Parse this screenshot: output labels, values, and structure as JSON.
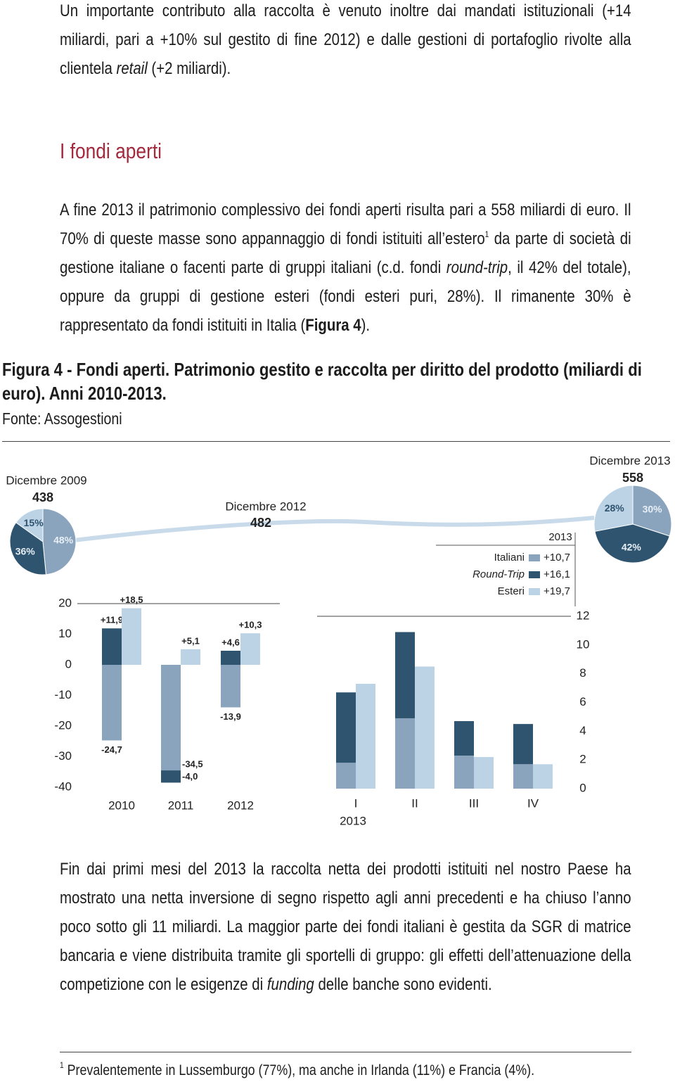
{
  "intro": {
    "runs": [
      {
        "text": "Un importante contributo alla raccolta è venuto inoltre dai mandati istituzionali (+14 miliardi, pari a +10% sul gestito di fine 2012) e dalle gestioni di portafoglio rivolte alla clientela "
      },
      {
        "text": "retail",
        "style": "italic"
      },
      {
        "text": " (+2 miliardi)."
      }
    ]
  },
  "section_title": "I fondi aperti",
  "paragraph_1": {
    "runs": [
      {
        "text": "A fine 2013 il patrimonio complessivo dei fondi aperti risulta pari a 558 miliardi di euro. Il 70% di queste masse sono appannaggio di fondi istituiti all’estero"
      },
      {
        "text": "1",
        "style": "superscript"
      },
      {
        "text": " da parte di società di gestione italiane o facenti parte di gruppi italiani (c.d. fondi "
      },
      {
        "text": "round-trip",
        "style": "italic"
      },
      {
        "text": ", il 42% del totale), oppure da gruppi di gestione esteri (fondi esteri puri, 28%). Il rimanente 30% è rappresentato da fondi istituiti in Italia ("
      },
      {
        "text": "Figura 4",
        "style": "bold"
      },
      {
        "text": ")."
      }
    ]
  },
  "figure": {
    "caption": "Figura 4 - Fondi aperti. Patrimonio gestito e raccolta per diritto del prodotto (miliardi di euro). Anni 2010-2013.",
    "source": "Fonte: Assogestioni"
  },
  "chart_data": [
    {
      "type": "pie",
      "title": "Dicembre 2009",
      "total": 438,
      "values": [
        48,
        36,
        15
      ],
      "value_labels": [
        "48%",
        "36%",
        "15%"
      ],
      "colors": [
        "#8aa4be",
        "#2e5470",
        "#bcd3e6"
      ]
    },
    {
      "type": "bar",
      "stacked": true,
      "annotation": {
        "title": "Dicembre 2012",
        "total": 482
      },
      "categories": [
        "2010",
        "2011",
        "2012"
      ],
      "ylim": [
        -40,
        20
      ],
      "yticks": [
        20,
        10,
        0,
        -10,
        -20,
        -30,
        -40
      ],
      "series": [
        {
          "color": "#8aa4be",
          "stack": 0,
          "values": [
            -24.7,
            -34.5,
            -13.9
          ],
          "value_labels": [
            "-24,7",
            "-34,5",
            "-13,9"
          ]
        },
        {
          "color": "#2e5470",
          "stack": 0,
          "values": [
            11.9,
            -4.0,
            4.6
          ],
          "value_labels": [
            "+11,9",
            "-4,0",
            "+4,6"
          ]
        },
        {
          "color": "#bcd3e6",
          "stack": 1,
          "values": [
            18.5,
            5.1,
            10.3
          ],
          "value_labels": [
            "+18,5",
            "+5,1",
            "+10,3"
          ]
        }
      ]
    },
    {
      "type": "bar",
      "stacked": true,
      "year": "2013",
      "categories": [
        "I",
        "II",
        "III",
        "IV"
      ],
      "ylim": [
        0,
        12
      ],
      "yticks": [
        0,
        2,
        4,
        6,
        8,
        10,
        12
      ],
      "legend": {
        "title": "2013",
        "totals": [
          {
            "value": 10.7,
            "label": "+10,7"
          },
          {
            "value": 16.1,
            "label": "+16,1"
          },
          {
            "value": 19.7,
            "label": "+19,7"
          }
        ]
      },
      "series": [
        {
          "name": "Italiani",
          "color": "#8aa4be",
          "stack": 0,
          "values": [
            1.8,
            4.9,
            2.3,
            1.7
          ]
        },
        {
          "name": "Round-Trip",
          "name_style": "italic",
          "color": "#2e5470",
          "stack": 0,
          "values": [
            4.9,
            6.0,
            2.4,
            2.8
          ]
        },
        {
          "name": "Esteri",
          "color": "#bcd3e6",
          "stack": 1,
          "values": [
            7.3,
            8.5,
            2.2,
            1.7
          ]
        }
      ]
    },
    {
      "type": "pie",
      "title": "Dicembre 2013",
      "total": 558,
      "values": [
        30,
        42,
        28
      ],
      "value_labels": [
        "30%",
        "42%",
        "28%"
      ],
      "colors": [
        "#8aa4be",
        "#2e5470",
        "#bcd3e6"
      ]
    }
  ],
  "paragraph_2": {
    "runs": [
      {
        "text": "Fin dai primi mesi del 2013 la raccolta netta dei prodotti istituiti nel nostro Paese ha mostrato una netta inversione di segno rispetto agli anni precedenti e ha chiuso l’anno poco sotto gli 11 miliardi. La maggior parte dei fondi italiani è gestita da SGR di matrice bancaria e viene distribuita tramite gli sportelli di gruppo: gli effetti dell’attenuazione della competizione con le esigenze di "
      },
      {
        "text": "funding",
        "style": "italic"
      },
      {
        "text": " delle banche sono evidenti."
      }
    ]
  },
  "footnote": {
    "marker": "1",
    "text": "Prevalentemente in Lussemburgo (77%), ma anche in Irlanda (11%) e Francia (4%)."
  }
}
